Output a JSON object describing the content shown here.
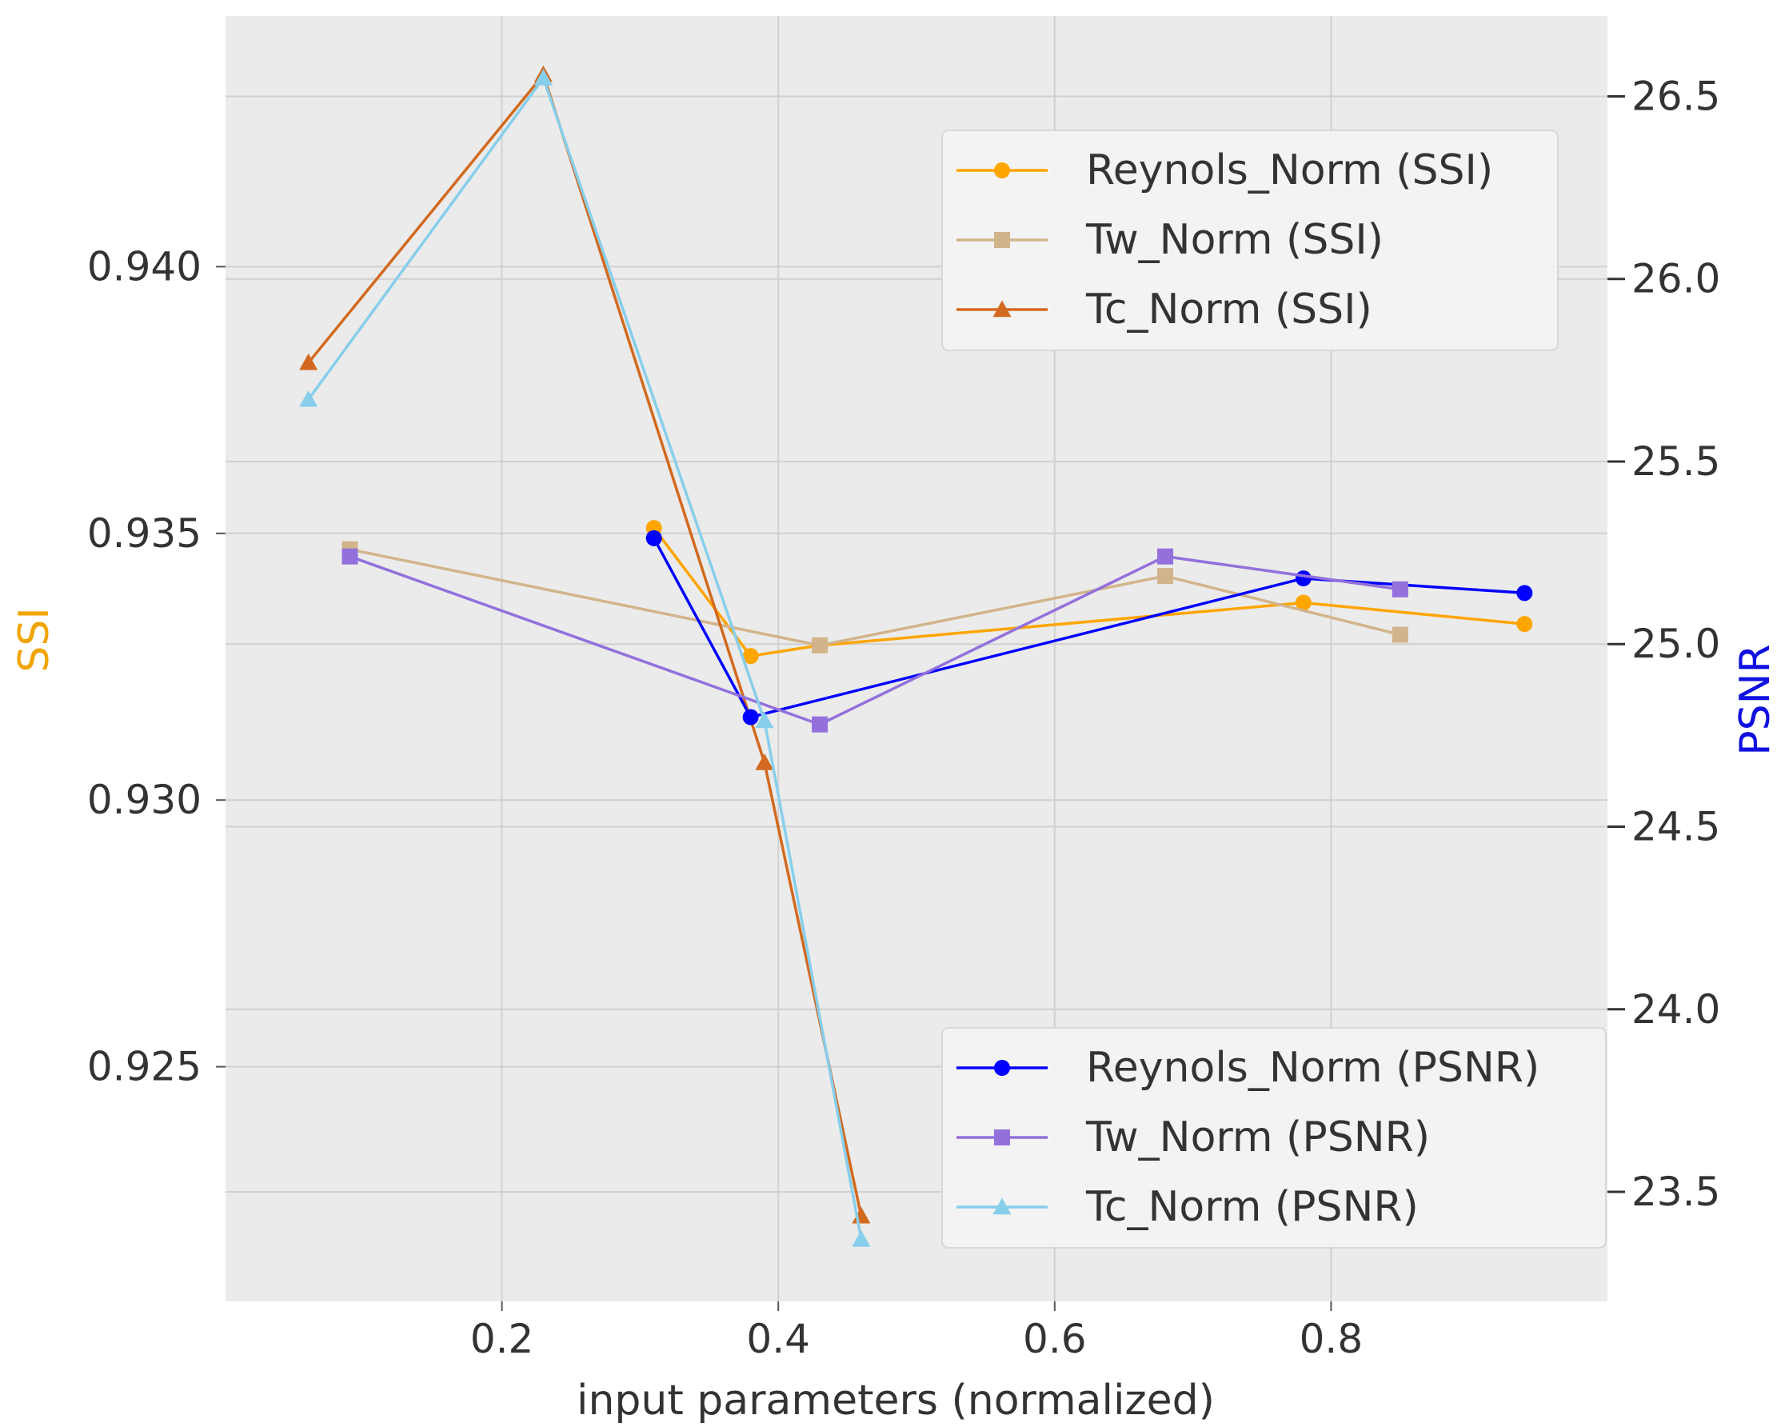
{
  "chart_data": {
    "type": "line",
    "title": "",
    "xlabel": "input parameters (normalized)",
    "ylabel_left": "SSI",
    "ylabel_right": "PSNR",
    "xlim": [
      0.0,
      1.0
    ],
    "ylim_left": [
      0.9206,
      0.9447
    ],
    "ylim_right": [
      23.2,
      26.72
    ],
    "x_ticks": [
      0.2,
      0.4,
      0.6,
      0.8
    ],
    "x_tick_labels": [
      "0.2",
      "0.4",
      "0.6",
      "0.8"
    ],
    "y_left_ticks": [
      0.925,
      0.93,
      0.935,
      0.94
    ],
    "y_left_tick_labels": [
      "0.925",
      "0.930",
      "0.935",
      "0.940"
    ],
    "y_right_ticks": [
      23.5,
      24.0,
      24.5,
      25.0,
      25.5,
      26.0,
      26.5
    ],
    "y_right_tick_labels": [
      "23.5",
      "24.0",
      "24.5",
      "25.0",
      "25.5",
      "26.0",
      "26.5"
    ],
    "grid": true,
    "colors": {
      "background": "#ebebeb",
      "grid": "#d0d0d0",
      "ylabel_left": "#f0a500",
      "ylabel_right": "#1010e0"
    },
    "series": [
      {
        "name": "Reynols_Norm (SSI)",
        "axis": "left",
        "color": "#ffa500",
        "marker": "circle",
        "x": [
          0.31,
          0.38,
          0.43,
          0.78,
          0.94
        ],
        "y": [
          0.9351,
          0.9327,
          0.9329,
          0.9337,
          0.9333
        ]
      },
      {
        "name": "Tw_Norm (SSI)",
        "axis": "left",
        "color": "#d2b48c",
        "marker": "square",
        "x": [
          0.09,
          0.43,
          0.68,
          0.85
        ],
        "y": [
          0.9347,
          0.9329,
          0.9342,
          0.9331
        ]
      },
      {
        "name": "Tc_Norm (SSI)",
        "axis": "left",
        "color": "#d2691e",
        "marker": "triangle",
        "x": [
          0.06,
          0.23,
          0.39,
          0.46
        ],
        "y": [
          0.9382,
          0.9436,
          0.9307,
          0.9222
        ]
      },
      {
        "name": "Reynols_Norm (PSNR)",
        "axis": "right",
        "color": "#0000ff",
        "marker": "circle",
        "x": [
          0.31,
          0.38,
          0.78,
          0.94
        ],
        "y": [
          25.29,
          24.8,
          25.18,
          25.14
        ]
      },
      {
        "name": "Tw_Norm (PSNR)",
        "axis": "right",
        "color": "#9370db",
        "marker": "square",
        "x": [
          0.09,
          0.43,
          0.68,
          0.85
        ],
        "y": [
          25.24,
          24.78,
          25.24,
          25.15
        ]
      },
      {
        "name": "Tc_Norm (PSNR)",
        "axis": "right",
        "color": "#87ceeb",
        "marker": "triangle",
        "x": [
          0.06,
          0.23,
          0.39,
          0.46
        ],
        "y": [
          25.67,
          26.55,
          24.79,
          23.37
        ]
      }
    ],
    "legend_upper": {
      "placement": "upper-right",
      "entries": [
        "Reynols_Norm (SSI)",
        "Tw_Norm (SSI)",
        "Tc_Norm (SSI)"
      ]
    },
    "legend_lower": {
      "placement": "lower-right",
      "entries": [
        "Reynols_Norm (PSNR)",
        "Tw_Norm (PSNR)",
        "Tc_Norm (PSNR)"
      ]
    }
  }
}
